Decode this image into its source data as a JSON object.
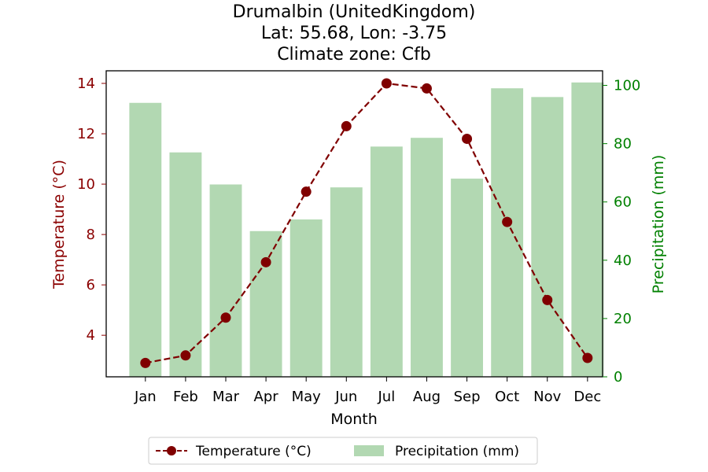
{
  "chart_data": {
    "type": "bar",
    "title_lines": [
      "Drumalbin (UnitedKingdom)",
      "Lat: 55.68, Lon: -3.75",
      "Climate zone: Cfb"
    ],
    "xlabel": "Month",
    "ylabel_left": "Temperature (°C)",
    "ylabel_right": "Precipitation (mm)",
    "categories": [
      "Jan",
      "Feb",
      "Mar",
      "Apr",
      "May",
      "Jun",
      "Jul",
      "Aug",
      "Sep",
      "Oct",
      "Nov",
      "Dec"
    ],
    "series": [
      {
        "name": "Temperature (°C)",
        "type": "line",
        "axis": "left",
        "style": "dashed, circle markers",
        "color": "#800000",
        "values": [
          2.9,
          3.2,
          4.7,
          6.9,
          9.7,
          12.3,
          14.0,
          13.8,
          11.8,
          8.5,
          5.4,
          3.1
        ]
      },
      {
        "name": "Precipitation (mm)",
        "type": "bar",
        "axis": "right",
        "color": "#b2d8b2",
        "values": [
          94,
          77,
          66,
          50,
          54,
          65,
          79,
          82,
          68,
          99,
          96,
          101
        ]
      }
    ],
    "ylim_left": [
      2.35,
      14.5
    ],
    "ylim_right": [
      0,
      105
    ],
    "yticks_left": [
      "4",
      "6",
      "8",
      "10",
      "12",
      "14"
    ],
    "yticks_right": [
      "0",
      "20",
      "40",
      "60",
      "80",
      "100"
    ],
    "left_axis_color": "#8b0000",
    "right_axis_color": "#008000",
    "grid": false,
    "legend": {
      "placement": "bottom-center",
      "entries": [
        "Temperature (°C)",
        "Precipitation (mm)"
      ]
    }
  }
}
